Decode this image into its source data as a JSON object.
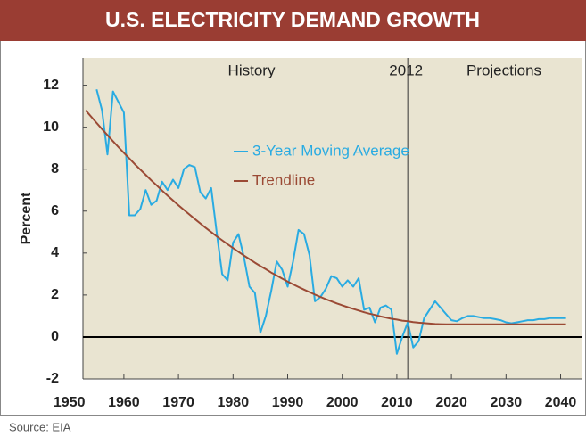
{
  "chart_data": {
    "type": "line",
    "title": "U.S. ELECTRICITY DEMAND GROWTH",
    "y_label": "Percent",
    "annotations": [
      "History",
      "Projections"
    ],
    "divider_x": 2012,
    "source": "Source: EIA",
    "xlim": [
      1952.5,
      2044
    ],
    "xticks": [
      1950,
      1960,
      1970,
      1980,
      1990,
      2000,
      2010,
      2020,
      2030,
      2040
    ],
    "ylim": [
      -2,
      13.3
    ],
    "yticks": [
      -2,
      0,
      2,
      4,
      6,
      8,
      10,
      12
    ],
    "legend": "upper center",
    "x": [
      1953,
      1954,
      1955,
      1956,
      1957,
      1958,
      1959,
      1960,
      1961,
      1962,
      1963,
      1964,
      1965,
      1966,
      1967,
      1968,
      1969,
      1970,
      1971,
      1972,
      1973,
      1974,
      1975,
      1976,
      1977,
      1978,
      1979,
      1980,
      1981,
      1982,
      1983,
      1984,
      1985,
      1986,
      1987,
      1988,
      1989,
      1990,
      1991,
      1992,
      1993,
      1994,
      1995,
      1996,
      1997,
      1998,
      1999,
      2000,
      2001,
      2002,
      2003,
      2004,
      2005,
      2006,
      2007,
      2008,
      2009,
      2010,
      2011,
      2012,
      2013,
      2014,
      2015,
      2016,
      2017,
      2018,
      2019,
      2020,
      2021,
      2022,
      2023,
      2024,
      2025,
      2026,
      2027,
      2028,
      2029,
      2030,
      2031,
      2032,
      2033,
      2034,
      2035,
      2036,
      2037,
      2038,
      2039,
      2040,
      2041
    ],
    "series": [
      {
        "name": "3-Year Moving Average",
        "color": "#29abe2",
        "values": [
          null,
          null,
          11.8,
          10.8,
          8.7,
          11.7,
          11.2,
          10.7,
          5.8,
          5.8,
          6.1,
          7.0,
          6.3,
          6.5,
          7.4,
          7.0,
          7.5,
          7.1,
          8.0,
          8.2,
          8.1,
          6.9,
          6.6,
          7.1,
          5.0,
          3.0,
          2.7,
          4.5,
          4.9,
          3.8,
          2.4,
          2.1,
          0.2,
          1.0,
          2.2,
          3.6,
          3.2,
          2.4,
          3.6,
          5.1,
          4.9,
          3.9,
          1.7,
          1.9,
          2.3,
          2.9,
          2.8,
          2.4,
          2.7,
          2.4,
          2.8,
          1.3,
          1.4,
          0.7,
          1.4,
          1.5,
          1.3,
          -0.8,
          0.0,
          0.7,
          -0.5,
          -0.2,
          0.9,
          1.3,
          1.7,
          1.4,
          1.1,
          0.8,
          0.75,
          0.9,
          1.0,
          1.0,
          0.95,
          0.9,
          0.9,
          0.85,
          0.8,
          0.7,
          0.65,
          0.7,
          0.75,
          0.8,
          0.8,
          0.85,
          0.85,
          0.9,
          0.9,
          0.9,
          0.9
        ]
      },
      {
        "name": "Trendline",
        "color": "#9b4a35",
        "values": [
          10.8,
          10.5,
          10.2,
          9.91,
          9.62,
          9.33,
          9.05,
          8.78,
          8.51,
          8.24,
          7.98,
          7.73,
          7.47,
          7.23,
          6.98,
          6.74,
          6.51,
          6.28,
          6.06,
          5.84,
          5.62,
          5.41,
          5.2,
          5.0,
          4.8,
          4.61,
          4.42,
          4.24,
          4.06,
          3.88,
          3.71,
          3.54,
          3.38,
          3.23,
          3.07,
          2.93,
          2.78,
          2.64,
          2.51,
          2.38,
          2.26,
          2.14,
          2.02,
          1.91,
          1.8,
          1.7,
          1.6,
          1.51,
          1.42,
          1.34,
          1.26,
          1.18,
          1.11,
          1.05,
          0.98,
          0.93,
          0.87,
          0.83,
          0.78,
          0.75,
          0.71,
          0.68,
          0.66,
          0.64,
          0.62,
          0.61,
          0.6,
          0.6,
          0.6,
          0.6,
          0.6,
          0.6,
          0.6,
          0.6,
          0.6,
          0.6,
          0.6,
          0.6,
          0.6,
          0.6,
          0.6,
          0.6,
          0.6,
          0.6,
          0.6,
          0.6,
          0.6,
          0.6,
          0.6
        ]
      }
    ]
  }
}
